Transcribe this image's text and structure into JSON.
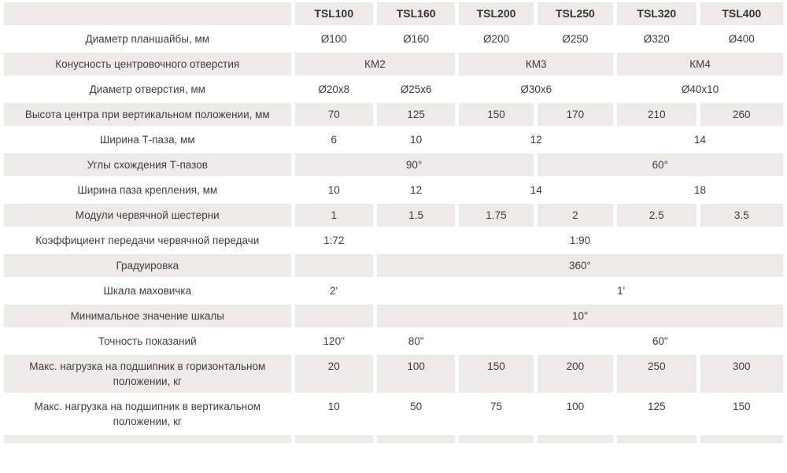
{
  "table": {
    "models": [
      "TSL100",
      "TSL160",
      "TSL200",
      "TSL250",
      "TSL320",
      "TSL400"
    ],
    "rows": [
      {
        "kind": "header",
        "cells": [
          {
            "text": "",
            "span": 1
          },
          {
            "text": "TSL100",
            "span": 1
          },
          {
            "text": "TSL160",
            "span": 1
          },
          {
            "text": "TSL200",
            "span": 1
          },
          {
            "text": "TSL250",
            "span": 1
          },
          {
            "text": "TSL320",
            "span": 1
          },
          {
            "text": "TSL400",
            "span": 1
          }
        ]
      },
      {
        "kind": "data",
        "cells": [
          {
            "text": "Диаметр планшайбы, мм",
            "span": 1
          },
          {
            "text": "Ø100",
            "span": 1
          },
          {
            "text": "Ø160",
            "span": 1
          },
          {
            "text": "Ø200",
            "span": 1
          },
          {
            "text": "Ø250",
            "span": 1
          },
          {
            "text": "Ø320",
            "span": 1
          },
          {
            "text": "Ø400",
            "span": 1
          }
        ]
      },
      {
        "kind": "data",
        "cells": [
          {
            "text": "Конусность центровочного отверстия",
            "span": 1
          },
          {
            "text": "КМ2",
            "span": 2
          },
          {
            "text": "КМ3",
            "span": 2
          },
          {
            "text": "КМ4",
            "span": 2
          }
        ]
      },
      {
        "kind": "data",
        "cells": [
          {
            "text": "Диаметр отверстия, мм",
            "span": 1
          },
          {
            "text": "Ø20x8",
            "span": 1
          },
          {
            "text": "Ø25x6",
            "span": 1
          },
          {
            "text": "Ø30x6",
            "span": 2
          },
          {
            "text": "Ø40x10",
            "span": 2
          }
        ]
      },
      {
        "kind": "data",
        "cells": [
          {
            "text": "Высота центра при вертикальном положении, мм",
            "span": 1
          },
          {
            "text": "70",
            "span": 1
          },
          {
            "text": "125",
            "span": 1
          },
          {
            "text": "150",
            "span": 1
          },
          {
            "text": "170",
            "span": 1
          },
          {
            "text": "210",
            "span": 1
          },
          {
            "text": "260",
            "span": 1
          }
        ]
      },
      {
        "kind": "data",
        "cells": [
          {
            "text": "Ширина Т-паза, мм",
            "span": 1
          },
          {
            "text": "6",
            "span": 1
          },
          {
            "text": "10",
            "span": 1
          },
          {
            "text": "12",
            "span": 2
          },
          {
            "text": "14",
            "span": 2
          }
        ]
      },
      {
        "kind": "data",
        "cells": [
          {
            "text": "Углы схождения Т-пазов",
            "span": 1
          },
          {
            "text": "90°",
            "span": 3
          },
          {
            "text": "60°",
            "span": 3
          }
        ]
      },
      {
        "kind": "data",
        "cells": [
          {
            "text": "Ширина паза крепления, мм",
            "span": 1
          },
          {
            "text": "10",
            "span": 1
          },
          {
            "text": "12",
            "span": 1
          },
          {
            "text": "14",
            "span": 2
          },
          {
            "text": "18",
            "span": 2
          }
        ]
      },
      {
        "kind": "data",
        "cells": [
          {
            "text": "Модули червячной шестерни",
            "span": 1
          },
          {
            "text": "1",
            "span": 1
          },
          {
            "text": "1.5",
            "span": 1
          },
          {
            "text": "1.75",
            "span": 1
          },
          {
            "text": "2",
            "span": 1
          },
          {
            "text": "2.5",
            "span": 1
          },
          {
            "text": "3.5",
            "span": 1
          }
        ]
      },
      {
        "kind": "data",
        "cells": [
          {
            "text": "Коэффициент передачи червячной передачи",
            "span": 1
          },
          {
            "text": "1:72",
            "span": 1
          },
          {
            "text": "1:90",
            "span": 5
          }
        ]
      },
      {
        "kind": "data",
        "cells": [
          {
            "text": "Градуировка",
            "span": 1
          },
          {
            "text": "",
            "span": 1
          },
          {
            "text": "360°",
            "span": 5
          }
        ]
      },
      {
        "kind": "data",
        "cells": [
          {
            "text": "Шкала маховичка",
            "span": 1
          },
          {
            "text": "2'",
            "span": 1
          },
          {
            "text": "",
            "span": 1
          },
          {
            "text": "1'",
            "span": 4
          }
        ]
      },
      {
        "kind": "data",
        "cells": [
          {
            "text": "Минимальное значение шкалы",
            "span": 1
          },
          {
            "text": "",
            "span": 1
          },
          {
            "text": "10\"",
            "span": 5
          }
        ]
      },
      {
        "kind": "data",
        "cells": [
          {
            "text": "Точность показаний",
            "span": 1
          },
          {
            "text": "120\"",
            "span": 1
          },
          {
            "text": "80\"",
            "span": 1
          },
          {
            "text": "",
            "span": 1
          },
          {
            "text": "60\"",
            "span": 3
          }
        ]
      },
      {
        "kind": "data",
        "cells": [
          {
            "text": "Макс. нагрузка на подшипник в горизонтальном положении, кг",
            "span": 1
          },
          {
            "text": "20",
            "span": 1
          },
          {
            "text": "100",
            "span": 1
          },
          {
            "text": "150",
            "span": 1
          },
          {
            "text": "200",
            "span": 1
          },
          {
            "text": "250",
            "span": 1
          },
          {
            "text": "300",
            "span": 1
          }
        ]
      },
      {
        "kind": "data",
        "cells": [
          {
            "text": "Макс. нагрузка на подшипник в вертикальном положении, кг",
            "span": 1
          },
          {
            "text": "10",
            "span": 1
          },
          {
            "text": "50",
            "span": 1
          },
          {
            "text": "75",
            "span": 1
          },
          {
            "text": "100",
            "span": 1
          },
          {
            "text": "125",
            "span": 1
          },
          {
            "text": "150",
            "span": 1
          }
        ]
      },
      {
        "kind": "cut",
        "cells": [
          {
            "text": "",
            "span": 1
          },
          {
            "text": "",
            "span": 1
          },
          {
            "text": "",
            "span": 1
          },
          {
            "text": "",
            "span": 1
          },
          {
            "text": "",
            "span": 1
          },
          {
            "text": "",
            "span": 1
          },
          {
            "text": "",
            "span": 1
          }
        ]
      }
    ],
    "colors": {
      "row_gray": "#ecebe8",
      "row_white": "#ffffff",
      "text": "#3e3e3e"
    }
  }
}
